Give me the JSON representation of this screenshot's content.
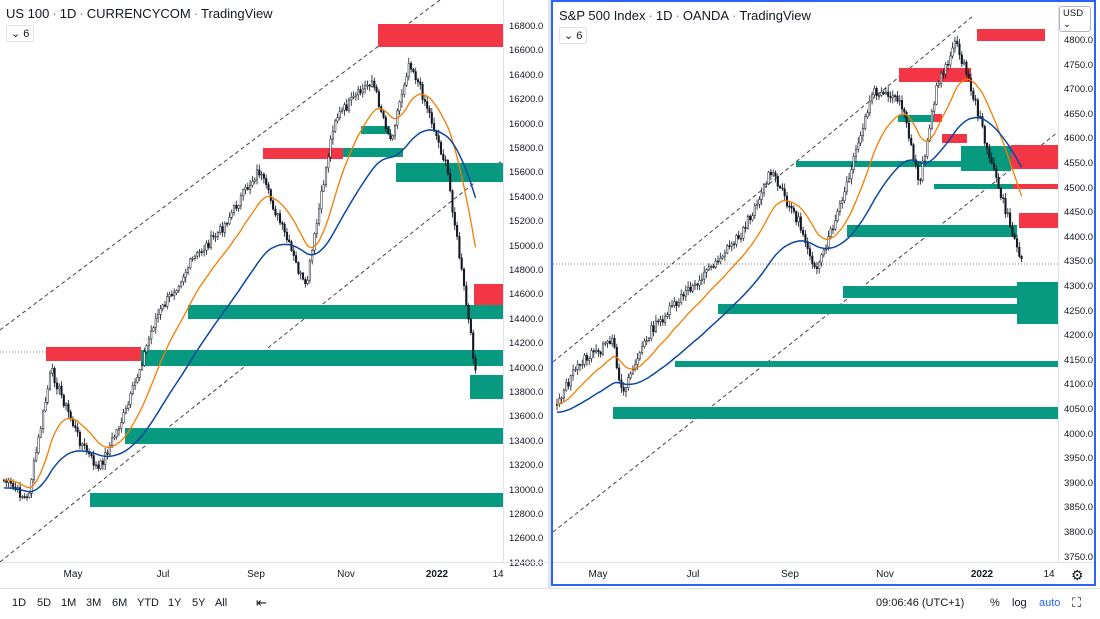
{
  "left": {
    "title": {
      "symbol": "US 100",
      "interval": "1D",
      "source": "CURRENCYCOM",
      "brand": "TradingView"
    },
    "indicator_count": "6",
    "y_ticks": [
      "16800.0",
      "16600.0",
      "16400.0",
      "16200.0",
      "16000.0",
      "15800.0",
      "15600.0",
      "15400.0",
      "15200.0",
      "15000.0",
      "14800.0",
      "14600.0",
      "14400.0",
      "14200.0",
      "14000.0",
      "13800.0",
      "13600.0",
      "13400.0",
      "13200.0",
      "13000.0",
      "12800.0",
      "12600.0",
      "12400.0"
    ],
    "x_ticks": [
      "May",
      "Jul",
      "Sep",
      "Nov",
      "2022",
      "14"
    ],
    "zones": {
      "supply": "#f23645",
      "demand": "#089981"
    }
  },
  "right": {
    "title": {
      "symbol": "S&P 500 Index",
      "interval": "1D",
      "source": "OANDA",
      "brand": "TradingView"
    },
    "indicator_count": "6",
    "currency": "USD",
    "y_ticks": [
      "4800.0",
      "4750.0",
      "4700.0",
      "4650.0",
      "4600.0",
      "4550.0",
      "4500.0",
      "4450.0",
      "4400.0",
      "4350.0",
      "4300.0",
      "4250.0",
      "4200.0",
      "4150.0",
      "4100.0",
      "4050.0",
      "4000.0",
      "3950.0",
      "3900.0",
      "3850.0",
      "3800.0",
      "3750.0"
    ],
    "x_ticks": [
      "May",
      "Jul",
      "Sep",
      "Nov",
      "2022",
      "14"
    ]
  },
  "bottom": {
    "ranges": [
      "1D",
      "5D",
      "1M",
      "3M",
      "6M",
      "YTD",
      "1Y",
      "5Y",
      "All"
    ],
    "time": "09:06:46 (UTC+1)",
    "percent": "%",
    "log": "log",
    "auto": "auto"
  },
  "colors": {
    "accent": "#2962ff",
    "ema_fast": "#f57c00",
    "ema_slow": "#0d47a1",
    "supply": "#f23645",
    "demand": "#089981"
  }
}
